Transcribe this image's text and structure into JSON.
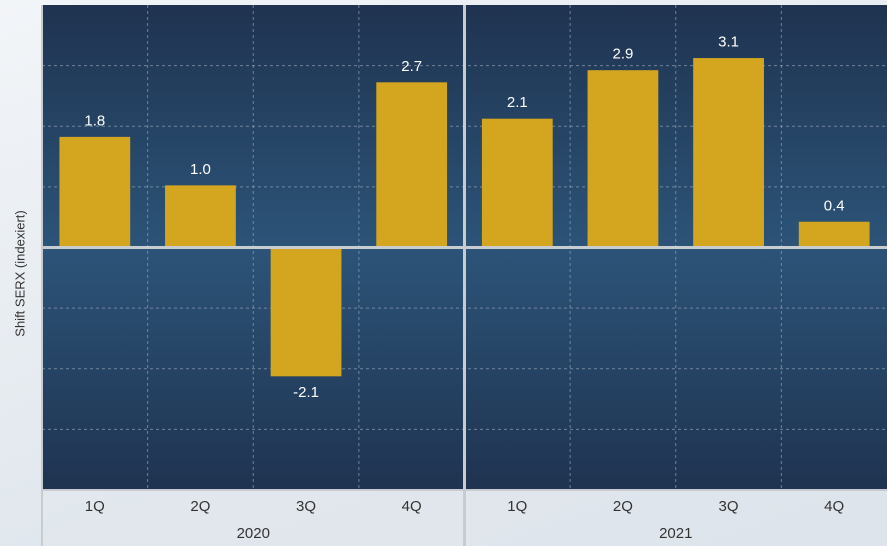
{
  "chart_data": {
    "type": "bar",
    "ylabel": "Shift SERX (indexiert)",
    "ylim": [
      -4,
      4
    ],
    "y_gridlines": [
      -3,
      -2,
      -1,
      1,
      2,
      3
    ],
    "grid": true,
    "tick_labels_y": false,
    "groups": [
      {
        "label": "2020",
        "categories": [
          "1Q",
          "2Q",
          "3Q",
          "4Q"
        ],
        "values": [
          1.8,
          1.0,
          -2.1,
          2.7
        ]
      },
      {
        "label": "2021",
        "categories": [
          "1Q",
          "2Q",
          "3Q",
          "4Q"
        ],
        "values": [
          2.1,
          2.9,
          3.1,
          0.4
        ]
      }
    ],
    "value_labels": [
      "1.8",
      "1.0",
      "-2.1",
      "2.7",
      "2.1",
      "2.9",
      "3.1",
      "0.4"
    ]
  },
  "colors": {
    "bar": "#d4a620",
    "plot_top": "#1f3350",
    "plot_mid": "#2c5478",
    "plot_bottom": "#1f3350",
    "grid": "#8da0b6",
    "separator": "#c8ccd0",
    "value_text": "#ffffff",
    "axis_text": "#333333"
  }
}
